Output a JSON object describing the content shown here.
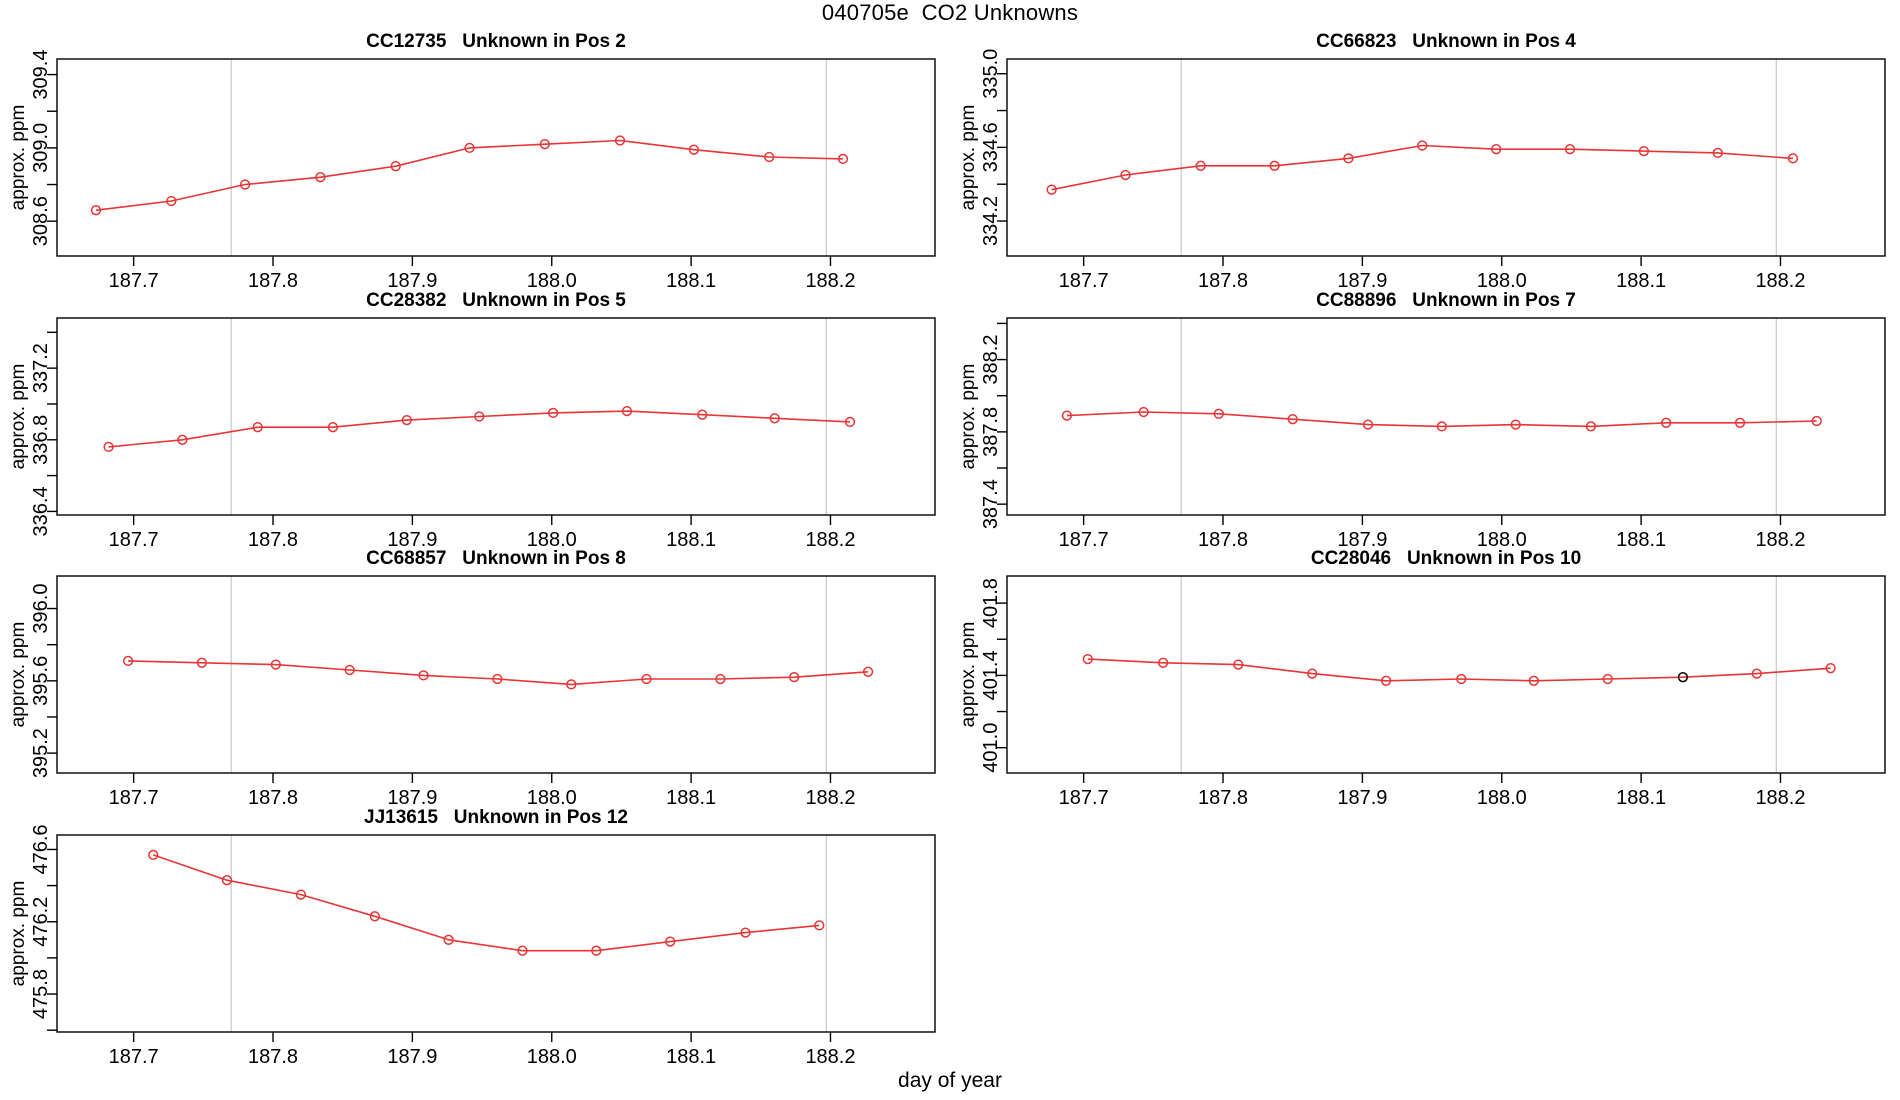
{
  "page_title": "040705e  CO2 Unknowns",
  "xlabel": "day of year",
  "ylabel": "approx. ppm",
  "colors": {
    "series": "#e83535",
    "special_point": "#000000",
    "grid_line": "#c8c8c8",
    "axis_box": "#000000",
    "text": "#000000",
    "background": "#ffffff"
  },
  "axis": {
    "xlim": [
      187.645,
      188.275
    ],
    "xtick_values": [
      187.7,
      187.8,
      187.9,
      188.0,
      188.1,
      188.2
    ],
    "xtick_labels": [
      "187.7",
      "187.8",
      "187.9",
      "188.0",
      "188.1",
      "188.2"
    ],
    "grid_x": [
      187.77,
      188.197
    ]
  },
  "chart_data": [
    {
      "type": "line",
      "code": "CC12735",
      "position_label": "Unknown in Pos 2",
      "col": 0,
      "row": 0,
      "ylim": [
        308.41,
        309.485
      ],
      "ytick_values": [
        308.6,
        308.8,
        309.0,
        309.2,
        309.4
      ],
      "ytick_labels": [
        "308.6",
        "",
        "309.0",
        "",
        "309.4"
      ],
      "x": [
        187.673,
        187.727,
        187.78,
        187.834,
        187.888,
        187.941,
        187.995,
        188.049,
        188.102,
        188.156,
        188.209
      ],
      "y": [
        308.66,
        308.71,
        308.8,
        308.84,
        308.9,
        309.0,
        309.02,
        309.04,
        308.99,
        308.95,
        308.94
      ]
    },
    {
      "type": "line",
      "code": "CC66823",
      "position_label": "Unknown in Pos 4",
      "col": 1,
      "row": 0,
      "ylim": [
        334.01,
        335.08
      ],
      "ytick_values": [
        334.2,
        334.4,
        334.6,
        334.8,
        335.0
      ],
      "ytick_labels": [
        "334.2",
        "",
        "334.6",
        "",
        "335.0"
      ],
      "x": [
        187.677,
        187.73,
        187.784,
        187.837,
        187.89,
        187.943,
        187.996,
        188.049,
        188.102,
        188.155,
        188.209
      ],
      "y": [
        334.37,
        334.45,
        334.5,
        334.5,
        334.54,
        334.61,
        334.59,
        334.59,
        334.58,
        334.57,
        334.54
      ]
    },
    {
      "type": "line",
      "code": "CC28382",
      "position_label": "Unknown in Pos 5",
      "col": 0,
      "row": 1,
      "ylim": [
        336.38,
        337.48
      ],
      "ytick_values": [
        336.4,
        336.6,
        336.8,
        337.0,
        337.2,
        337.4
      ],
      "ytick_labels": [
        "336.4",
        "",
        "336.8",
        "",
        "337.2",
        ""
      ],
      "x": [
        187.682,
        187.735,
        187.789,
        187.843,
        187.896,
        187.948,
        188.001,
        188.054,
        188.108,
        188.16,
        188.214
      ],
      "y": [
        336.76,
        336.8,
        336.87,
        336.87,
        336.91,
        336.93,
        336.95,
        336.96,
        336.94,
        336.92,
        336.9
      ]
    },
    {
      "type": "line",
      "code": "CC88896",
      "position_label": "Unknown in Pos 7",
      "col": 1,
      "row": 1,
      "ylim": [
        387.34,
        388.43
      ],
      "ytick_values": [
        387.4,
        387.6,
        387.8,
        388.0,
        388.2,
        388.4
      ],
      "ytick_labels": [
        "387.4",
        "",
        "387.8",
        "",
        "388.2",
        ""
      ],
      "x": [
        187.688,
        187.743,
        187.797,
        187.85,
        187.904,
        187.957,
        188.01,
        188.064,
        188.118,
        188.171,
        188.226
      ],
      "y": [
        387.89,
        387.91,
        387.9,
        387.87,
        387.84,
        387.83,
        387.84,
        387.83,
        387.85,
        387.85,
        387.86
      ]
    },
    {
      "type": "line",
      "code": "CC68857",
      "position_label": "Unknown in Pos 8",
      "col": 0,
      "row": 2,
      "ylim": [
        395.09,
        396.18
      ],
      "ytick_values": [
        395.2,
        395.4,
        395.6,
        395.8,
        396.0
      ],
      "ytick_labels": [
        "395.2",
        "",
        "395.6",
        "",
        "396.0"
      ],
      "x": [
        187.696,
        187.749,
        187.802,
        187.855,
        187.908,
        187.961,
        188.014,
        188.068,
        188.121,
        188.174,
        188.227
      ],
      "y": [
        395.71,
        395.7,
        395.69,
        395.66,
        395.63,
        395.61,
        395.58,
        395.61,
        395.61,
        395.62,
        395.65
      ]
    },
    {
      "type": "line",
      "code": "CC28046",
      "position_label": "Unknown in Pos 10",
      "col": 1,
      "row": 2,
      "ylim": [
        400.86,
        401.95
      ],
      "ytick_values": [
        401.0,
        401.2,
        401.4,
        401.6,
        401.8
      ],
      "ytick_labels": [
        "401.0",
        "",
        "401.4",
        "",
        "401.8"
      ],
      "special_point_index": 8,
      "x": [
        187.703,
        187.757,
        187.811,
        187.864,
        187.917,
        187.971,
        188.023,
        188.076,
        188.13,
        188.183,
        188.236
      ],
      "y": [
        401.49,
        401.47,
        401.46,
        401.41,
        401.37,
        401.38,
        401.37,
        401.38,
        401.39,
        401.41,
        401.44
      ]
    },
    {
      "type": "line",
      "code": "JJ13615",
      "position_label": "Unknown in Pos 12",
      "col": 0,
      "row": 3,
      "ylim": [
        475.59,
        476.68
      ],
      "ytick_values": [
        475.6,
        475.8,
        476.0,
        476.2,
        476.4,
        476.6
      ],
      "ytick_labels": [
        "",
        "475.8",
        "",
        "476.2",
        "",
        "476.6"
      ],
      "x": [
        187.714,
        187.767,
        187.82,
        187.873,
        187.926,
        187.979,
        188.032,
        188.085,
        188.139,
        188.192
      ],
      "y": [
        476.57,
        476.43,
        476.35,
        476.23,
        476.1,
        476.04,
        476.04,
        476.09,
        476.14,
        476.18
      ]
    }
  ]
}
